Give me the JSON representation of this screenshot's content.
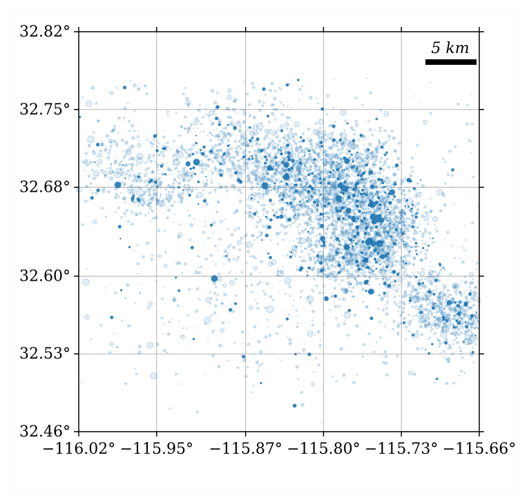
{
  "map": {
    "type": "scatter",
    "xlim": [
      -116.02,
      -115.66
    ],
    "ylim": [
      32.46,
      32.82
    ],
    "grid": true,
    "point_color": "#1f77b4",
    "x_ticks": [
      {
        "value": -116.02,
        "label": "−116.02°"
      },
      {
        "value": -115.95,
        "label": "−115.95°"
      },
      {
        "value": -115.87,
        "label": "−115.87°"
      },
      {
        "value": -115.8,
        "label": "−115.80°"
      },
      {
        "value": -115.73,
        "label": "−115.73°"
      },
      {
        "value": -115.66,
        "label": "−115.66°"
      }
    ],
    "y_ticks": [
      {
        "value": 32.82,
        "label": "32.82°"
      },
      {
        "value": 32.75,
        "label": "32.75°"
      },
      {
        "value": 32.68,
        "label": "32.68°"
      },
      {
        "value": 32.6,
        "label": "32.60°"
      },
      {
        "value": 32.53,
        "label": "32.53°"
      },
      {
        "value": 32.46,
        "label": "32.46°"
      }
    ],
    "scale_bar": {
      "label": "5 km",
      "length_km": 5
    }
  }
}
